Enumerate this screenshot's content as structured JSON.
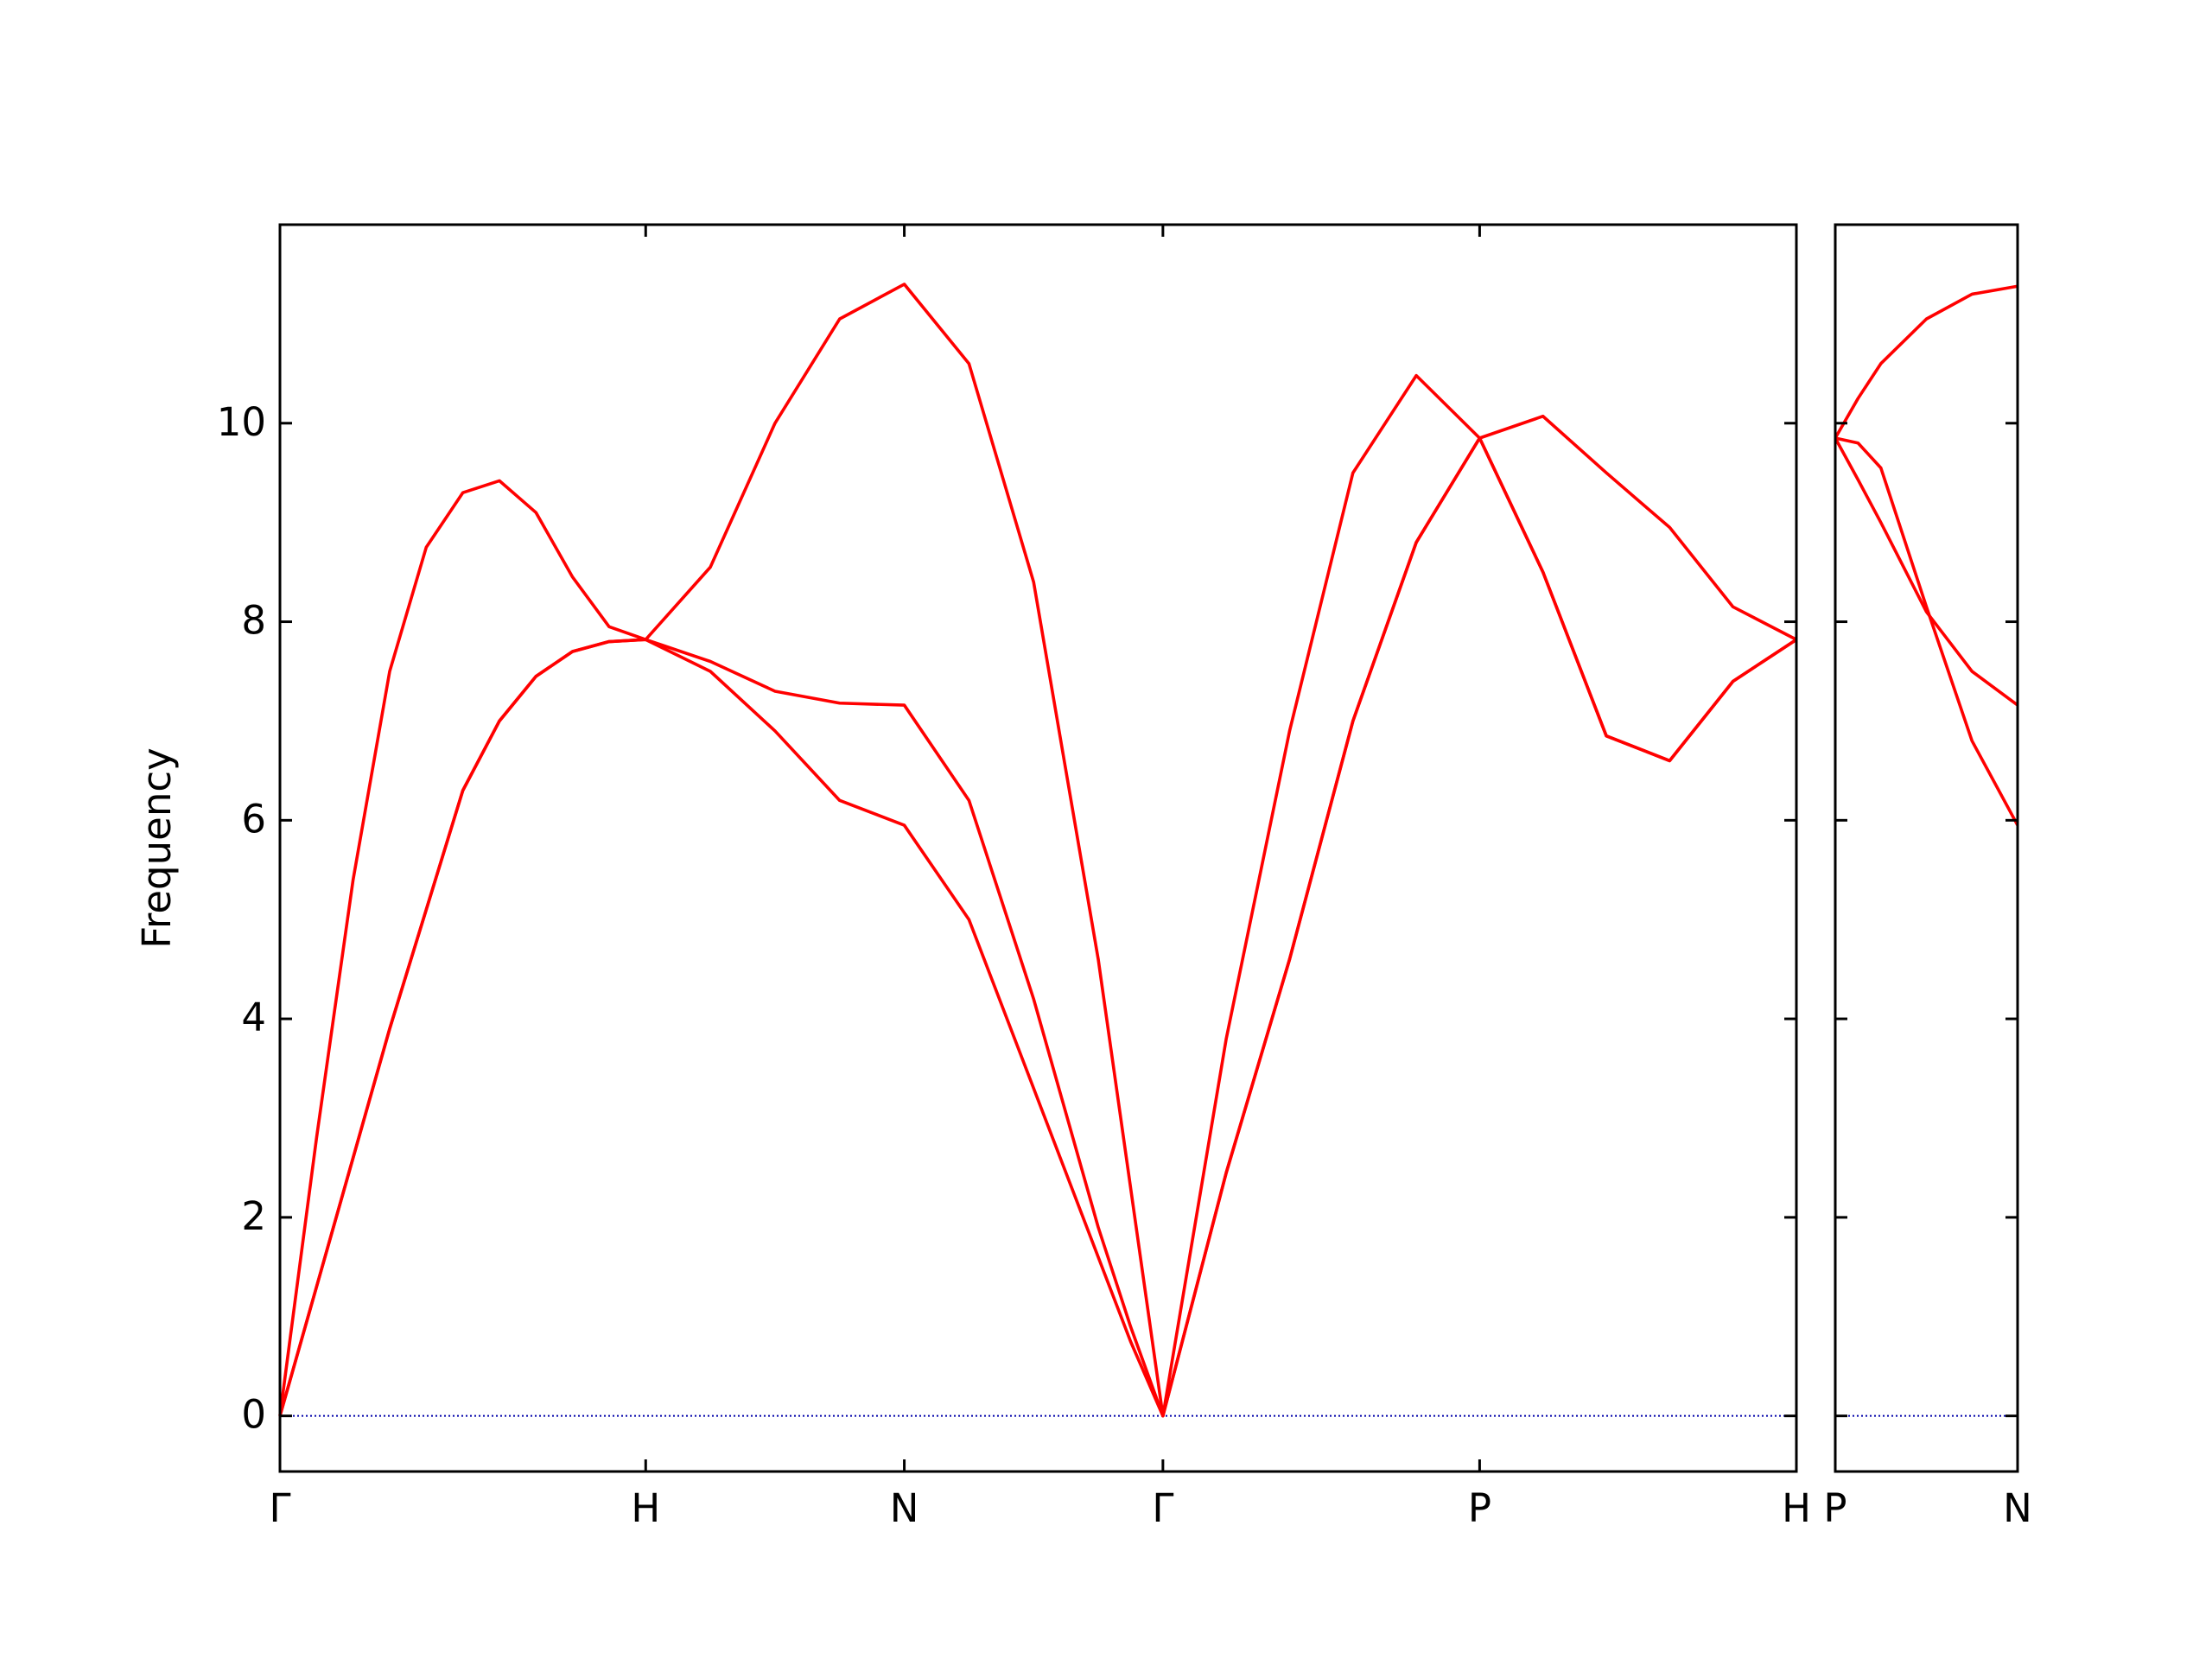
{
  "chart_data": [
    {
      "type": "line",
      "ylabel": "Frequency",
      "x": [
        0,
        0.1,
        0.2,
        0.3,
        0.4,
        0.5,
        0.6,
        0.7,
        0.8,
        0.9,
        1.0,
        1.1768,
        1.3536,
        1.5303,
        1.7071,
        1.8839,
        2.0607,
        2.2374,
        2.3258,
        2.4142,
        2.5874,
        2.7606,
        2.9338,
        3.107,
        3.2802,
        3.4534,
        3.6266,
        3.7998,
        3.973,
        4.1463
      ],
      "series": [
        {
          "color": "#ff0000",
          "values": [
            0,
            2.8,
            5.4,
            7.5,
            8.75,
            9.3,
            9.42,
            9.1,
            8.45,
            7.95,
            7.82,
            8.55,
            10.0,
            11.05,
            11.4,
            10.6,
            8.4,
            4.6,
            2.3,
            0,
            3.8,
            6.9,
            9.5,
            10.48,
            9.85,
            10.07,
            9.5,
            8.95,
            8.15,
            7.82
          ]
        },
        {
          "color": "#ff0000",
          "values": [
            0,
            1.3,
            2.6,
            3.9,
            5.1,
            6.3,
            7.0,
            7.45,
            7.7,
            7.8,
            7.82,
            7.6,
            7.3,
            7.18,
            7.16,
            6.2,
            4.2,
            1.9,
            0.9,
            0,
            2.45,
            4.6,
            7.0,
            8.8,
            9.85,
            8.5,
            6.85,
            6.6,
            7.4,
            7.82
          ]
        },
        {
          "color": "#ff0000",
          "values": [
            0,
            1.3,
            2.6,
            3.9,
            5.1,
            6.3,
            7.0,
            7.45,
            7.7,
            7.8,
            7.82,
            7.5,
            6.9,
            6.2,
            5.95,
            5.0,
            3.3,
            1.6,
            0.75,
            0,
            2.45,
            4.6,
            7.0,
            8.8,
            9.85,
            8.5,
            6.85,
            6.6,
            7.4,
            7.82
          ]
        }
      ],
      "xlim": [
        0,
        4.1463
      ],
      "xticks": [
        {
          "value": 0,
          "label": "Γ"
        },
        {
          "value": 1.0,
          "label": "H"
        },
        {
          "value": 1.7071,
          "label": "N"
        },
        {
          "value": 2.4142,
          "label": "Γ"
        },
        {
          "value": 3.2802,
          "label": "P"
        },
        {
          "value": 4.1463,
          "label": "H"
        }
      ],
      "ylim": [
        -0.56,
        12.0
      ],
      "yticks": [
        0,
        2,
        4,
        6,
        8,
        10
      ],
      "ytick_labels": true,
      "hline": 0,
      "hline_color": "#0000aa"
    },
    {
      "type": "line",
      "x": [
        4.1463,
        4.2088,
        4.2713,
        4.3963,
        4.5213,
        4.6463
      ],
      "series": [
        {
          "color": "#ff0000",
          "values": [
            9.85,
            10.25,
            10.6,
            11.05,
            11.3,
            11.38
          ]
        },
        {
          "color": "#ff0000",
          "values": [
            9.85,
            9.43,
            9.0,
            8.1,
            7.5,
            7.16
          ]
        },
        {
          "color": "#ff0000",
          "values": [
            9.85,
            9.8,
            9.55,
            8.15,
            6.8,
            5.95
          ]
        }
      ],
      "xlim": [
        4.1463,
        4.6463
      ],
      "xticks": [
        {
          "value": 4.1463,
          "label": "P"
        },
        {
          "value": 4.6463,
          "label": "N"
        }
      ],
      "ylim": [
        -0.56,
        12.0
      ],
      "yticks": [
        0,
        2,
        4,
        6,
        8,
        10
      ],
      "ytick_labels": false,
      "hline": 0,
      "hline_color": "#0000aa"
    }
  ]
}
